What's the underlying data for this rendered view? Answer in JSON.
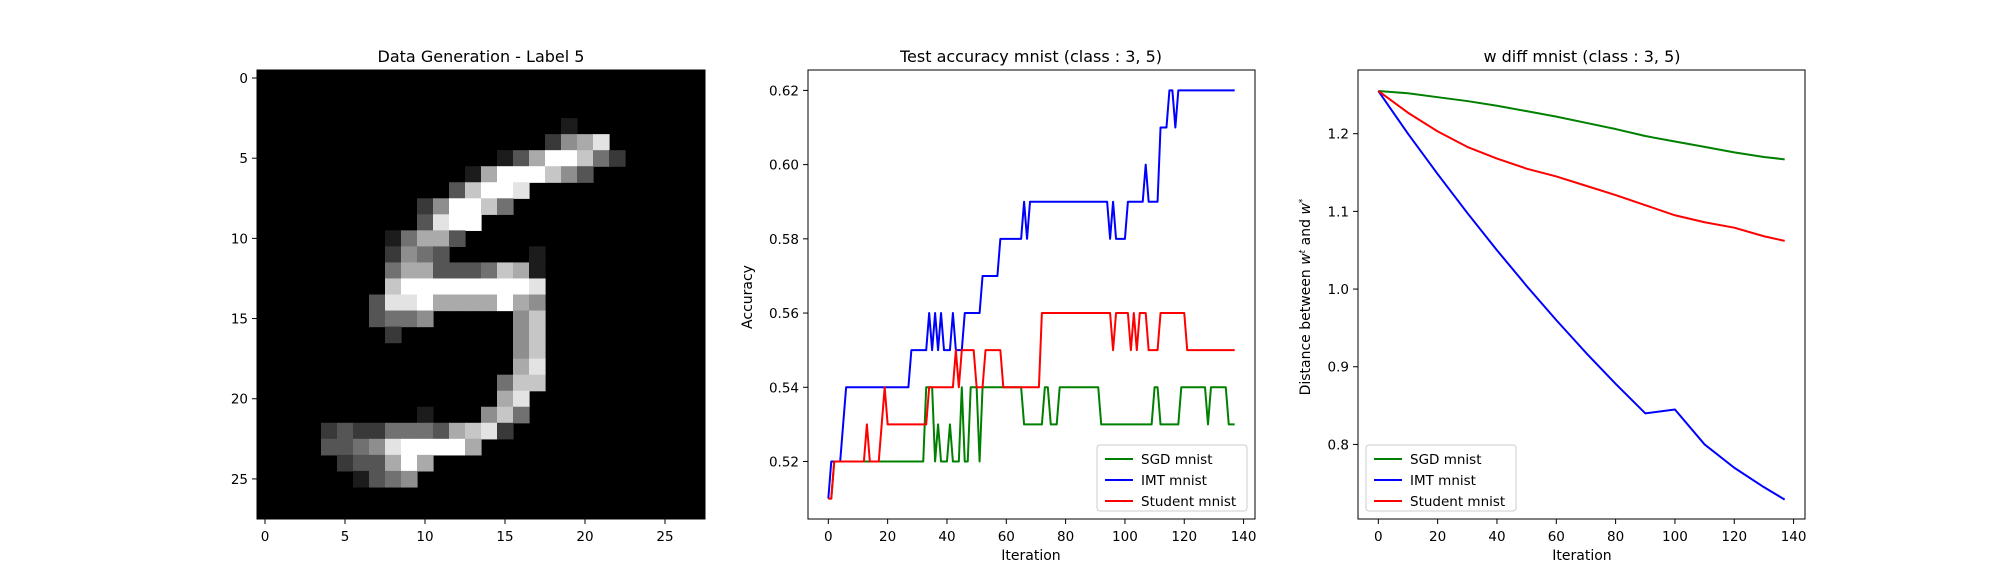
{
  "chart_data": [
    {
      "type": "heatmap",
      "title": "Data Generation - Label 5",
      "xlabel": "",
      "ylabel": "",
      "xlim": [
        -0.5,
        27.5
      ],
      "ylim": [
        27.5,
        -0.5
      ],
      "xticks": [
        0,
        5,
        10,
        15,
        20,
        25
      ],
      "yticks": [
        0,
        5,
        10,
        15,
        20,
        25
      ],
      "colormap": "gray",
      "rows": [
        "............................",
        "............................",
        "............................",
        "...................1........",
        "..................2568......",
        "...............13699742.....",
        ".............16999753.......",
        "............37998...........",
        "..........259974............",
        "..........3899..............",
        "........14663...............",
        "........2543.....1..........",
        "........4663334761..........",
        "........7999999998..........",
        ".......38896666965..........",
        ".......3445.....57..........",
        "........2.......57..........",
        "................57..........",
        "................68..........",
        "...............477..........",
        "...............68...........",
        "..........1...574...........",
        "....232244436782............",
        "....3345899996..............",
        ".....233696.................",
        "......1345..................",
        "............................",
        "............................"
      ]
    },
    {
      "type": "line",
      "title": "Test accuracy mnist (class : 3, 5)",
      "xlabel": "Iteration",
      "ylabel": "Accuracy",
      "xlim": [
        -6.85,
        143.85
      ],
      "ylim": [
        0.5045,
        0.6255
      ],
      "xticks": [
        0,
        20,
        40,
        60,
        80,
        100,
        120,
        140
      ],
      "yticks": [
        0.52,
        0.54,
        0.56,
        0.58,
        0.6,
        0.62
      ],
      "legend": "lower-right",
      "series": [
        {
          "name": "SGD mnist",
          "color": "#008000",
          "points": [
            [
              0,
              0.51
            ],
            [
              1,
              0.51
            ],
            [
              2,
              0.52
            ],
            [
              32,
              0.52
            ],
            [
              33,
              0.54
            ],
            [
              35,
              0.54
            ],
            [
              36,
              0.52
            ],
            [
              37,
              0.53
            ],
            [
              38,
              0.52
            ],
            [
              39,
              0.52
            ],
            [
              40,
              0.52
            ],
            [
              41,
              0.53
            ],
            [
              42,
              0.52
            ],
            [
              44,
              0.52
            ],
            [
              45,
              0.54
            ],
            [
              46,
              0.52
            ],
            [
              47,
              0.52
            ],
            [
              48,
              0.54
            ],
            [
              50,
              0.54
            ],
            [
              51,
              0.52
            ],
            [
              52,
              0.54
            ],
            [
              65,
              0.54
            ],
            [
              66,
              0.53
            ],
            [
              72,
              0.53
            ],
            [
              73,
              0.54
            ],
            [
              74,
              0.54
            ],
            [
              75,
              0.53
            ],
            [
              77,
              0.53
            ],
            [
              78,
              0.54
            ],
            [
              91,
              0.54
            ],
            [
              92,
              0.53
            ],
            [
              109,
              0.53
            ],
            [
              110,
              0.54
            ],
            [
              111,
              0.54
            ],
            [
              112,
              0.53
            ],
            [
              118,
              0.53
            ],
            [
              119,
              0.54
            ],
            [
              127,
              0.54
            ],
            [
              128,
              0.53
            ],
            [
              129,
              0.54
            ],
            [
              134,
              0.54
            ],
            [
              135,
              0.53
            ],
            [
              137,
              0.53
            ]
          ]
        },
        {
          "name": "IMT mnist",
          "color": "#0000ff",
          "points": [
            [
              0,
              0.51
            ],
            [
              1,
              0.52
            ],
            [
              4,
              0.52
            ],
            [
              5,
              0.53
            ],
            [
              6,
              0.54
            ],
            [
              27,
              0.54
            ],
            [
              28,
              0.55
            ],
            [
              33,
              0.55
            ],
            [
              34,
              0.56
            ],
            [
              35,
              0.55
            ],
            [
              36,
              0.56
            ],
            [
              37,
              0.55
            ],
            [
              38,
              0.56
            ],
            [
              39,
              0.55
            ],
            [
              41,
              0.55
            ],
            [
              42,
              0.56
            ],
            [
              43,
              0.55
            ],
            [
              45,
              0.55
            ],
            [
              46,
              0.56
            ],
            [
              51,
              0.56
            ],
            [
              52,
              0.57
            ],
            [
              57,
              0.57
            ],
            [
              58,
              0.58
            ],
            [
              65,
              0.58
            ],
            [
              66,
              0.59
            ],
            [
              67,
              0.58
            ],
            [
              68,
              0.59
            ],
            [
              94,
              0.59
            ],
            [
              95,
              0.58
            ],
            [
              96,
              0.59
            ],
            [
              97,
              0.58
            ],
            [
              100,
              0.58
            ],
            [
              101,
              0.59
            ],
            [
              106,
              0.59
            ],
            [
              107,
              0.6
            ],
            [
              108,
              0.59
            ],
            [
              111,
              0.59
            ],
            [
              112,
              0.61
            ],
            [
              114,
              0.61
            ],
            [
              115,
              0.62
            ],
            [
              116,
              0.62
            ],
            [
              117,
              0.61
            ],
            [
              118,
              0.62
            ],
            [
              137,
              0.62
            ]
          ]
        },
        {
          "name": "Student mnist",
          "color": "#ff0000",
          "points": [
            [
              0,
              0.51
            ],
            [
              1,
              0.51
            ],
            [
              2,
              0.52
            ],
            [
              12,
              0.52
            ],
            [
              13,
              0.53
            ],
            [
              14,
              0.52
            ],
            [
              17,
              0.52
            ],
            [
              18,
              0.53
            ],
            [
              19,
              0.54
            ],
            [
              20,
              0.53
            ],
            [
              33,
              0.53
            ],
            [
              34,
              0.54
            ],
            [
              42,
              0.54
            ],
            [
              43,
              0.55
            ],
            [
              44,
              0.54
            ],
            [
              45,
              0.55
            ],
            [
              49,
              0.55
            ],
            [
              50,
              0.54
            ],
            [
              52,
              0.54
            ],
            [
              53,
              0.55
            ],
            [
              58,
              0.55
            ],
            [
              59,
              0.54
            ],
            [
              71,
              0.54
            ],
            [
              72,
              0.56
            ],
            [
              95,
              0.56
            ],
            [
              96,
              0.55
            ],
            [
              97,
              0.56
            ],
            [
              101,
              0.56
            ],
            [
              102,
              0.55
            ],
            [
              103,
              0.56
            ],
            [
              104,
              0.55
            ],
            [
              105,
              0.56
            ],
            [
              107,
              0.56
            ],
            [
              108,
              0.55
            ],
            [
              111,
              0.55
            ],
            [
              112,
              0.56
            ],
            [
              120,
              0.56
            ],
            [
              121,
              0.55
            ],
            [
              137,
              0.55
            ]
          ]
        }
      ]
    },
    {
      "type": "line",
      "title": "w diff mnist (class : 3, 5)",
      "xlabel": "Iteration",
      "ylabel": "Distance between w^t and w^*",
      "xlim": [
        -6.85,
        143.85
      ],
      "ylim": [
        0.704,
        1.282
      ],
      "xticks": [
        0,
        20,
        40,
        60,
        80,
        100,
        120,
        140
      ],
      "yticks": [
        0.8,
        0.9,
        1.0,
        1.1,
        1.2
      ],
      "legend": "lower-left",
      "series": [
        {
          "name": "SGD mnist",
          "color": "#008000",
          "points": [
            [
              0,
              1.255
            ],
            [
              10,
              1.252
            ],
            [
              20,
              1.247
            ],
            [
              30,
              1.242
            ],
            [
              40,
              1.236
            ],
            [
              50,
              1.229
            ],
            [
              60,
              1.222
            ],
            [
              70,
              1.214
            ],
            [
              80,
              1.206
            ],
            [
              90,
              1.197
            ],
            [
              100,
              1.19
            ],
            [
              110,
              1.183
            ],
            [
              120,
              1.176
            ],
            [
              130,
              1.17
            ],
            [
              137,
              1.167
            ]
          ]
        },
        {
          "name": "IMT mnist",
          "color": "#0000ff",
          "points": [
            [
              0,
              1.255
            ],
            [
              10,
              1.2
            ],
            [
              20,
              1.148
            ],
            [
              30,
              1.098
            ],
            [
              40,
              1.05
            ],
            [
              50,
              1.004
            ],
            [
              60,
              0.96
            ],
            [
              70,
              0.918
            ],
            [
              80,
              0.878
            ],
            [
              90,
              0.84
            ],
            [
              100,
              0.845
            ],
            [
              110,
              0.8
            ],
            [
              120,
              0.77
            ],
            [
              130,
              0.745
            ],
            [
              137,
              0.729
            ]
          ]
        },
        {
          "name": "Student mnist",
          "color": "#ff0000",
          "points": [
            [
              0,
              1.255
            ],
            [
              10,
              1.227
            ],
            [
              20,
              1.203
            ],
            [
              30,
              1.183
            ],
            [
              40,
              1.168
            ],
            [
              50,
              1.155
            ],
            [
              60,
              1.145
            ],
            [
              70,
              1.133
            ],
            [
              80,
              1.121
            ],
            [
              90,
              1.108
            ],
            [
              100,
              1.095
            ],
            [
              110,
              1.086
            ],
            [
              120,
              1.079
            ],
            [
              130,
              1.068
            ],
            [
              137,
              1.062
            ]
          ]
        }
      ]
    }
  ]
}
